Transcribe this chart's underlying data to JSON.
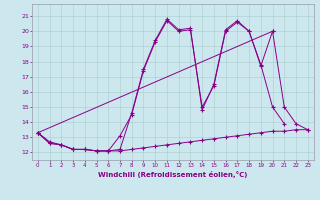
{
  "xlabel": "Windchill (Refroidissement éolien,°C)",
  "background_color": "#cce8ee",
  "line_color": "#880088",
  "xlim": [
    -0.5,
    23.5
  ],
  "ylim": [
    11.5,
    21.8
  ],
  "xticks": [
    0,
    1,
    2,
    3,
    4,
    5,
    6,
    7,
    8,
    9,
    10,
    11,
    12,
    13,
    14,
    15,
    16,
    17,
    18,
    19,
    20,
    21,
    22,
    23
  ],
  "yticks": [
    12,
    13,
    14,
    15,
    16,
    17,
    18,
    19,
    20,
    21
  ],
  "series": [
    {
      "x": [
        0,
        1,
        2,
        3,
        4,
        5,
        6,
        7,
        8,
        9,
        10,
        11,
        12,
        13,
        14,
        15,
        16,
        17,
        18,
        19,
        20,
        21,
        22,
        23
      ],
      "y": [
        13.3,
        12.6,
        12.5,
        12.2,
        12.2,
        12.1,
        12.1,
        12.1,
        12.2,
        12.3,
        12.4,
        12.5,
        12.6,
        12.7,
        12.8,
        12.9,
        13.0,
        13.1,
        13.2,
        13.3,
        13.4,
        13.4,
        13.5,
        13.5
      ]
    },
    {
      "x": [
        0,
        1,
        2,
        3,
        4,
        5,
        6,
        7,
        8,
        9,
        10,
        11,
        12,
        13,
        14,
        15,
        16,
        17,
        18,
        19,
        20,
        21
      ],
      "y": [
        13.3,
        12.6,
        12.5,
        12.2,
        12.2,
        12.1,
        12.1,
        12.2,
        14.6,
        17.5,
        19.4,
        20.8,
        20.1,
        20.2,
        14.8,
        16.5,
        20.1,
        20.7,
        20.0,
        17.8,
        15.0,
        13.9
      ]
    },
    {
      "x": [
        0,
        1,
        2,
        3,
        4,
        5,
        6,
        7,
        8,
        9,
        10,
        11,
        12,
        13,
        14,
        15,
        16,
        17,
        18,
        19,
        20
      ],
      "y": [
        13.3,
        12.7,
        12.5,
        12.2,
        12.2,
        12.1,
        12.1,
        13.1,
        14.5,
        17.4,
        19.3,
        20.7,
        20.0,
        20.1,
        15.0,
        16.4,
        20.0,
        20.6,
        20.0,
        17.7,
        20.0
      ]
    },
    {
      "x": [
        0,
        20,
        21,
        22,
        23
      ],
      "y": [
        13.3,
        20.0,
        15.0,
        13.9,
        13.5
      ]
    }
  ]
}
